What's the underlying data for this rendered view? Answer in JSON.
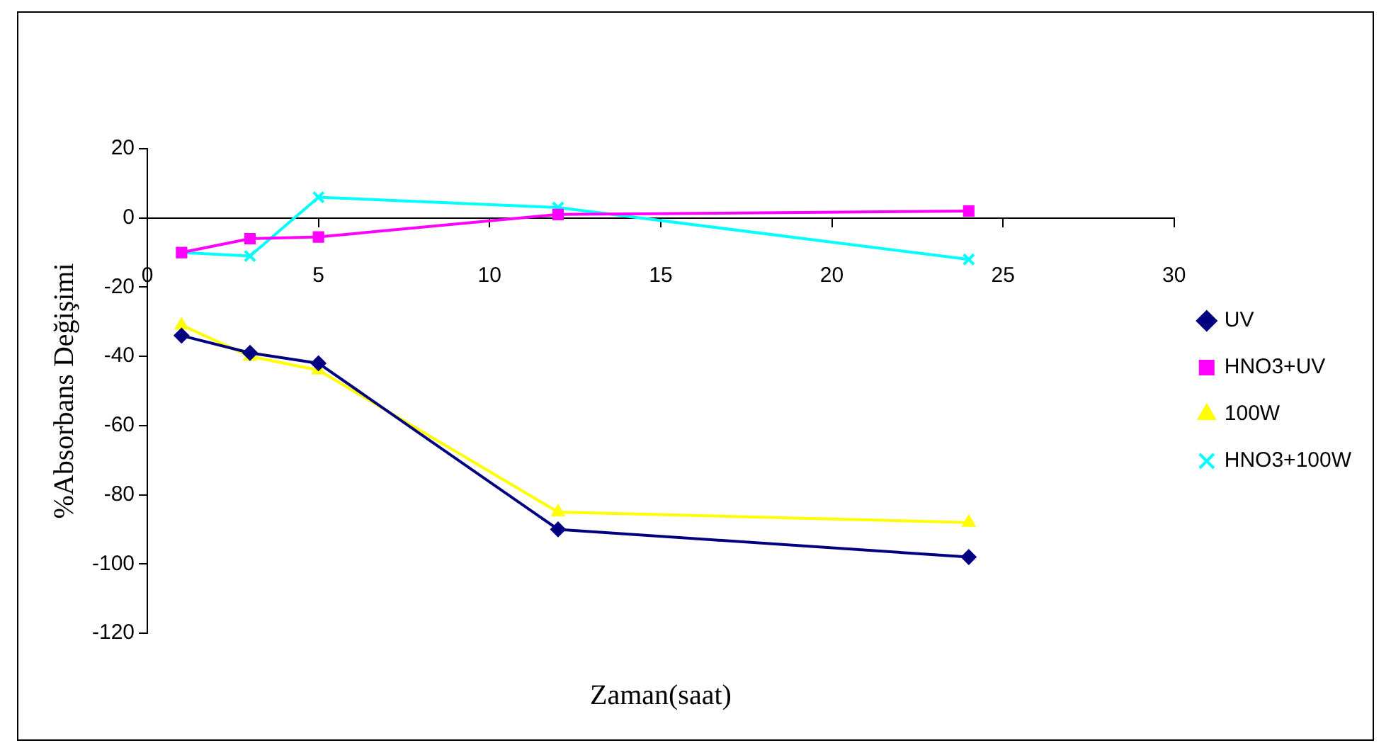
{
  "chart_data": {
    "type": "line",
    "xlabel": "Zaman(saat)",
    "ylabel": "%Absorbans Değişimi",
    "x": [
      1,
      3,
      5,
      12,
      24
    ],
    "series": [
      {
        "name": "UV",
        "color": "#000080",
        "marker": "diamond",
        "values": [
          -34,
          -39,
          -42,
          -90,
          -98
        ]
      },
      {
        "name": "HNO3+UV",
        "color": "#ff00ff",
        "marker": "square",
        "values": [
          -10,
          -6,
          -5.5,
          1,
          2
        ]
      },
      {
        "name": "100W",
        "color": "#ffff00",
        "marker": "triangle",
        "values": [
          -31,
          -40,
          -44,
          -85,
          -88
        ]
      },
      {
        "name": "HNO3+100W",
        "color": "#00ffff",
        "marker": "cross",
        "values": [
          -10,
          -11,
          6,
          3,
          -12
        ]
      }
    ],
    "xlim": [
      0,
      30
    ],
    "xticks": [
      0,
      5,
      10,
      15,
      20,
      25,
      30
    ],
    "ylim": [
      -120,
      20
    ],
    "yticks": [
      -120,
      -100,
      -80,
      -60,
      -40,
      -20,
      0,
      20
    ],
    "grid": false,
    "legend": "right",
    "line_style": "solid"
  }
}
